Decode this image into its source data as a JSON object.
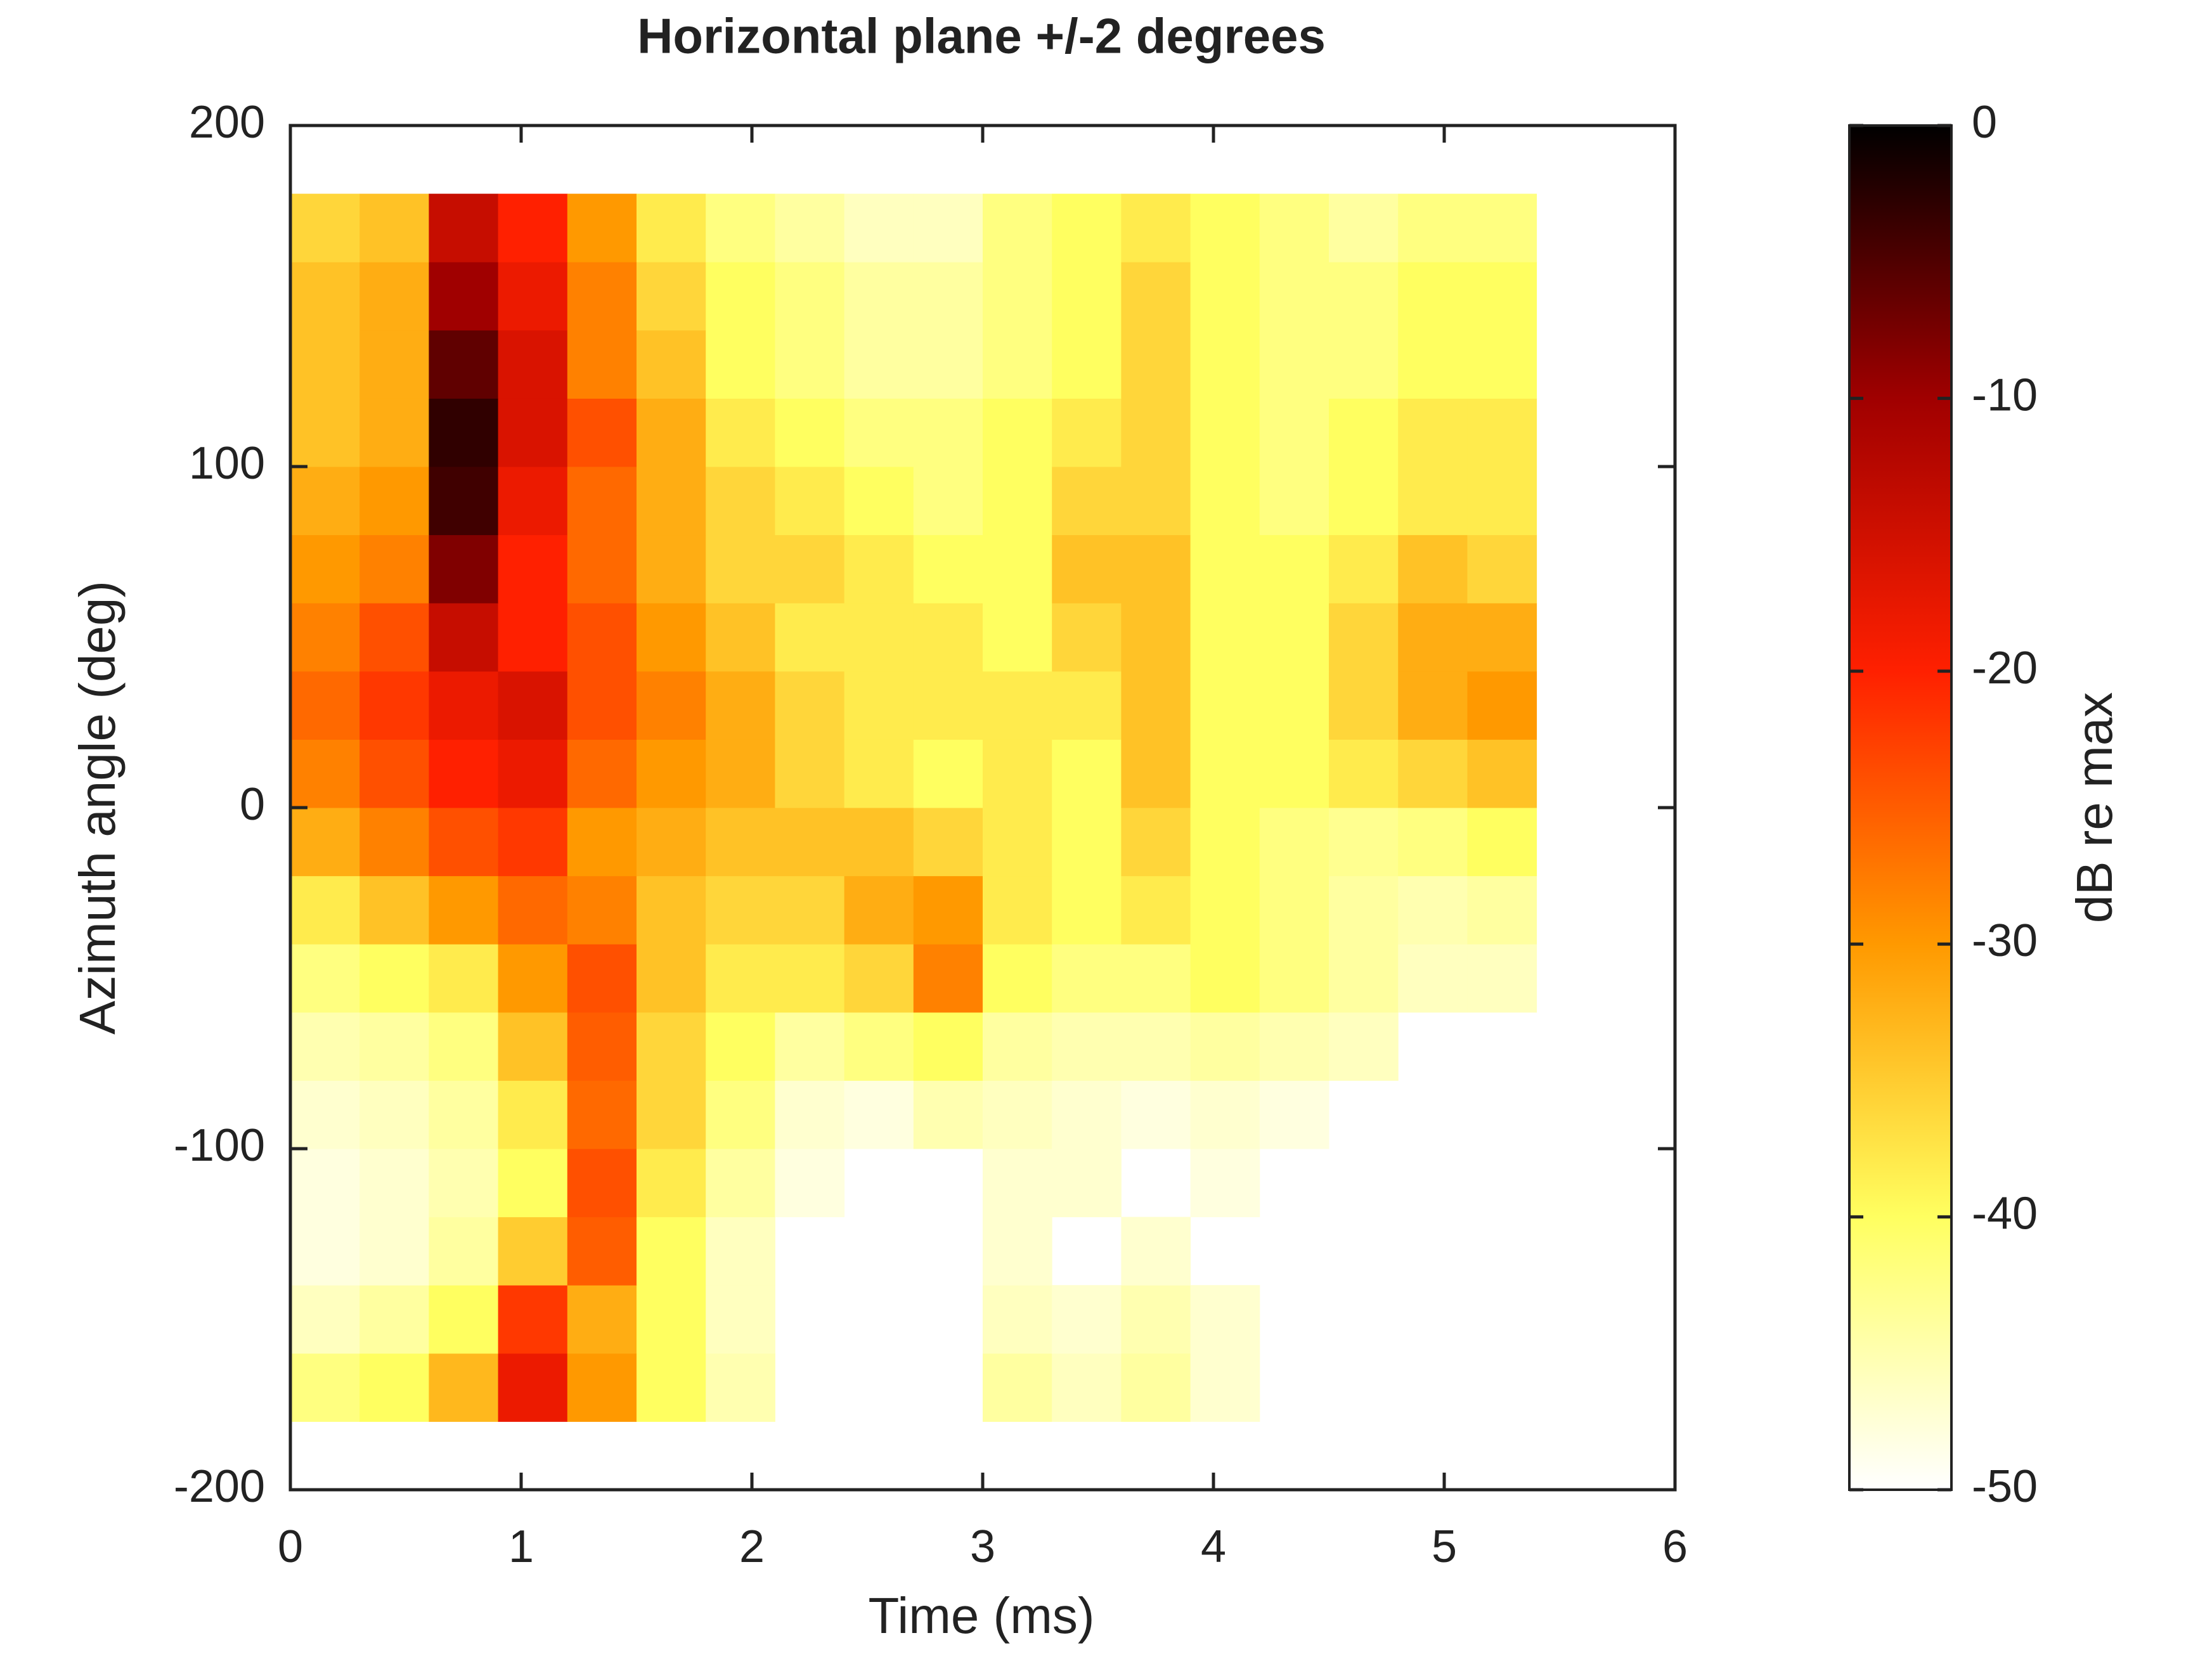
{
  "chart_data": {
    "type": "heatmap",
    "title": "Horizontal plane +/-2 degrees",
    "x_label": "Time (ms)",
    "y_label": "Azimuth angle (deg)",
    "colorbar_label": "dB re max",
    "xlim": [
      0,
      6
    ],
    "xticks": [
      0,
      1,
      2,
      3,
      4,
      5,
      6
    ],
    "ylim": [
      -200,
      200
    ],
    "yticks": [
      -200,
      -100,
      0,
      100,
      200
    ],
    "clim": [
      -50,
      0
    ],
    "cticks": [
      0,
      -10,
      -20,
      -30,
      -40,
      -50
    ],
    "colormap": [
      "#ffffff",
      "#ffff60",
      "#ff9900",
      "#ff2000",
      "#a00000",
      "#000000"
    ],
    "x_edges": [
      0,
      0.3,
      0.6,
      0.9,
      1.2,
      1.5,
      1.8,
      2.1,
      2.4,
      2.7,
      3.0,
      3.3,
      3.6,
      3.9,
      4.2,
      4.5,
      4.8,
      5.1,
      5.4
    ],
    "y_edges": [
      -180,
      -160,
      -140,
      -120,
      -100,
      -80,
      -60,
      -40,
      -20,
      0,
      20,
      40,
      60,
      80,
      100,
      120,
      140,
      160,
      180
    ],
    "z": [
      [
        -42,
        -40,
        -33,
        -18,
        -30,
        -40,
        -45,
        null,
        null,
        null,
        -44,
        -46,
        -44,
        -47,
        null,
        null,
        null,
        null
      ],
      [
        -46,
        -44,
        -40,
        -22,
        -32,
        -40,
        -46,
        null,
        null,
        null,
        -46,
        -47,
        -45,
        -47,
        null,
        null,
        null,
        null
      ],
      [
        -48,
        -47,
        -44,
        -35,
        -25,
        -40,
        -46,
        null,
        null,
        null,
        -47,
        null,
        -47,
        null,
        null,
        null,
        null,
        null
      ],
      [
        -48,
        -47,
        -45,
        -40,
        -24,
        -38,
        -44,
        -48,
        null,
        null,
        -47,
        -47,
        null,
        -48,
        null,
        null,
        null,
        null
      ],
      [
        -47,
        -46,
        -44,
        -38,
        -26,
        -36,
        -42,
        -47,
        -48,
        -45,
        -46,
        -47,
        -48,
        -47,
        -48,
        null,
        null,
        null
      ],
      [
        -45,
        -44,
        -42,
        -34,
        -25,
        -36,
        -40,
        -44,
        -42,
        -40,
        -44,
        -45,
        -45,
        -44,
        -45,
        -46,
        null,
        null
      ],
      [
        -42,
        -40,
        -38,
        -30,
        -24,
        -34,
        -38,
        -38,
        -36,
        -28,
        -40,
        -42,
        -42,
        -40,
        -42,
        -44,
        -46,
        -46
      ],
      [
        -38,
        -34,
        -30,
        -26,
        -28,
        -34,
        -36,
        -36,
        -32,
        -30,
        -38,
        -40,
        -38,
        -40,
        -42,
        -44,
        -45,
        -44
      ],
      [
        -32,
        -28,
        -24,
        -22,
        -30,
        -32,
        -34,
        -34,
        -34,
        -36,
        -38,
        -40,
        -36,
        -40,
        -42,
        -43,
        -42,
        -40
      ],
      [
        -28,
        -24,
        -20,
        -18,
        -26,
        -30,
        -32,
        -36,
        -38,
        -40,
        -38,
        -40,
        -34,
        -40,
        -40,
        -38,
        -36,
        -34
      ],
      [
        -26,
        -22,
        -18,
        -16,
        -24,
        -28,
        -32,
        -36,
        -38,
        -38,
        -38,
        -38,
        -34,
        -40,
        -40,
        -36,
        -32,
        -30
      ],
      [
        -28,
        -24,
        -14,
        -20,
        -24,
        -30,
        -34,
        -38,
        -38,
        -38,
        -40,
        -36,
        -34,
        -40,
        -40,
        -36,
        -32,
        -32
      ],
      [
        -30,
        -28,
        -8,
        -20,
        -26,
        -32,
        -36,
        -36,
        -38,
        -40,
        -40,
        -34,
        -34,
        -40,
        -40,
        -38,
        -34,
        -36
      ],
      [
        -32,
        -30,
        -4,
        -18,
        -26,
        -32,
        -36,
        -38,
        -40,
        -42,
        -40,
        -36,
        -36,
        -40,
        -42,
        -40,
        -38,
        -38
      ],
      [
        -34,
        -32,
        -3,
        -16,
        -24,
        -32,
        -38,
        -40,
        -42,
        -42,
        -40,
        -38,
        -36,
        -40,
        -42,
        -40,
        -38,
        -38
      ],
      [
        -34,
        -32,
        -6,
        -16,
        -28,
        -34,
        -40,
        -42,
        -44,
        -44,
        -42,
        -40,
        -36,
        -40,
        -42,
        -42,
        -40,
        -40
      ],
      [
        -34,
        -32,
        -10,
        -18,
        -28,
        -36,
        -40,
        -42,
        -44,
        -44,
        -42,
        -40,
        -36,
        -40,
        -42,
        -42,
        -40,
        -40
      ],
      [
        -36,
        -34,
        -14,
        -20,
        -30,
        -38,
        -42,
        -44,
        -46,
        -46,
        -42,
        -40,
        -38,
        -40,
        -42,
        -44,
        -42,
        -42
      ]
    ]
  }
}
